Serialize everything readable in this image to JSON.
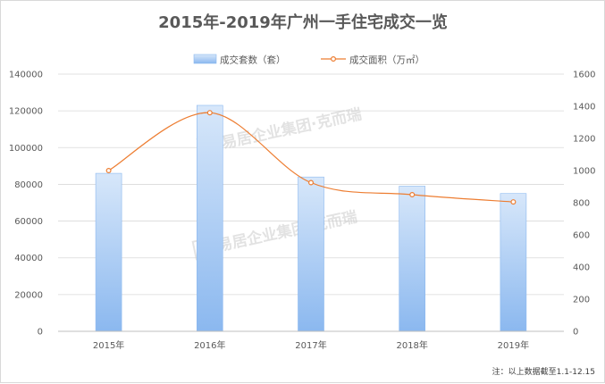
{
  "chart_data": {
    "type": "bar",
    "title": "2015年-2019年广州一手住宅成交一览",
    "categories": [
      "2015年",
      "2016年",
      "2017年",
      "2018年",
      "2019年"
    ],
    "series": [
      {
        "name": "成交套数（套）",
        "type": "bar",
        "axis": "left",
        "values": [
          86000,
          123000,
          84000,
          79000,
          75000
        ],
        "color": "#9dc3f0"
      },
      {
        "name": "成交面积（万㎡）",
        "type": "line",
        "axis": "right",
        "values": [
          1000,
          1360,
          925,
          850,
          805
        ],
        "color": "#ed7d31"
      }
    ],
    "ylim_left": [
      0,
      140000
    ],
    "yticks_left": [
      0,
      20000,
      40000,
      60000,
      80000,
      100000,
      120000,
      140000
    ],
    "ylim_right": [
      0,
      1600
    ],
    "yticks_right": [
      0,
      200,
      400,
      600,
      800,
      1000,
      1200,
      1400,
      1600
    ],
    "grid": true,
    "legend_position": "top-center",
    "note": "注：以上数据截至1.1-12.15",
    "watermark": "易居企业集团·克而瑞"
  }
}
